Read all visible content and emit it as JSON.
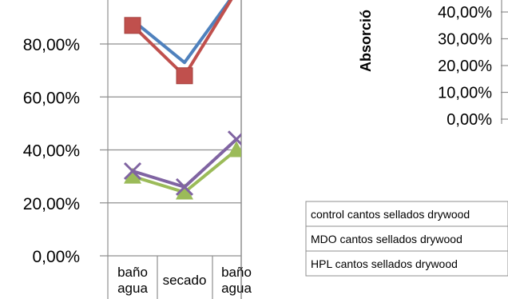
{
  "chart_data": [
    {
      "type": "line",
      "categories": [
        "baño agua",
        "secado",
        "baño agua"
      ],
      "ylim": [
        0,
        1
      ],
      "y_ticks": [
        "0,00%",
        "20,00%",
        "40,00%",
        "60,00%",
        "80,00%"
      ],
      "grid": true,
      "series": [
        {
          "color": "#4f81bd",
          "marker": "none",
          "values": [
            0.89,
            0.73,
            1.0
          ]
        },
        {
          "color": "#c0504d",
          "marker": "square",
          "values": [
            0.87,
            0.68,
            1.0
          ]
        },
        {
          "color": "#8064a2",
          "marker": "x",
          "values": [
            0.32,
            0.26,
            0.44
          ]
        },
        {
          "color": "#9bbb59",
          "marker": "triangle",
          "values": [
            0.3,
            0.24,
            0.4
          ]
        }
      ]
    },
    {
      "type": "line",
      "ylabel": "Absorció",
      "y_ticks": [
        "0,00%",
        "10,00%",
        "20,00%",
        "30,00%",
        "40,00%"
      ],
      "legend_position": "right",
      "legend": [
        "control cantos sellados drywood",
        "MDO cantos sellados drywood",
        "HPL cantos sellados drywood"
      ]
    }
  ]
}
